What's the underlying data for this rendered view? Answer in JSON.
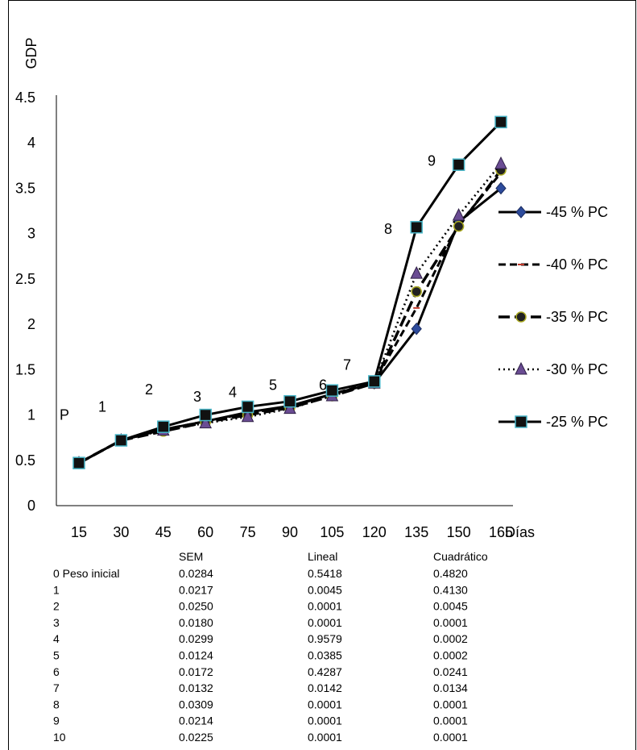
{
  "chart_data": {
    "type": "line",
    "ylabel": "GDP",
    "xlabel": "Días",
    "ylim": [
      0,
      4.5
    ],
    "y_ticks": [
      "0",
      "0.5",
      "1",
      "1.5",
      "2",
      "2.5",
      "3",
      "3.5",
      "4",
      "4.5"
    ],
    "x": [
      "15",
      "30",
      "45",
      "60",
      "75",
      "90",
      "105",
      "120",
      "135",
      "150",
      "165"
    ],
    "grid": false,
    "legend_position": "right",
    "series": [
      {
        "name": "-45 % PC",
        "values": [
          0.47,
          0.72,
          0.84,
          0.93,
          1.03,
          1.1,
          1.23,
          1.35,
          1.95,
          3.13,
          3.5
        ],
        "color": "#000000",
        "marker_color": "#2d4b9c",
        "dash": "solid"
      },
      {
        "name": "-40 % PC",
        "values": [
          0.47,
          0.72,
          0.84,
          0.93,
          1.02,
          1.09,
          1.23,
          1.36,
          2.18,
          3.1,
          3.67
        ],
        "color": "#000000",
        "marker_color": "#c0392b",
        "dash": "dash"
      },
      {
        "name": "-35 % PC",
        "values": [
          0.47,
          0.72,
          0.82,
          0.92,
          1.0,
          1.08,
          1.21,
          1.35,
          2.36,
          3.08,
          3.7
        ],
        "color": "#000000",
        "marker_color": "#a8a820",
        "dash": "longdash"
      },
      {
        "name": "-30 % PC",
        "values": [
          0.47,
          0.72,
          0.83,
          0.91,
          0.98,
          1.07,
          1.21,
          1.35,
          2.56,
          3.2,
          3.77
        ],
        "color": "#000000",
        "marker_color": "#6a4c93",
        "dash": "dot"
      },
      {
        "name": "-25 % PC",
        "values": [
          0.47,
          0.72,
          0.87,
          1.0,
          1.09,
          1.15,
          1.27,
          1.37,
          3.07,
          3.76,
          4.23
        ],
        "color": "#000000",
        "marker_color": "#48b6c8",
        "dash": "solid"
      }
    ],
    "annotations": [
      {
        "label": "P",
        "x": "15",
        "y": 1.0
      },
      {
        "label": "1",
        "x": "30",
        "y": 1.09
      },
      {
        "label": "2",
        "x": "45",
        "y": 1.28
      },
      {
        "label": "3",
        "x": "60",
        "y": 1.2
      },
      {
        "label": "4",
        "x": "75",
        "y": 1.25
      },
      {
        "label": "5",
        "x": "90",
        "y": 1.33
      },
      {
        "label": "6",
        "x": "105",
        "y": 1.33
      },
      {
        "label": "7",
        "x": "120",
        "y": 1.55
      },
      {
        "label": "8",
        "x": "135",
        "y": 3.05
      },
      {
        "label": "9",
        "x": "150",
        "y": 3.8
      }
    ]
  },
  "table": {
    "headers": [
      "",
      "SEM",
      "Lineal",
      "Cuadrático"
    ],
    "rows": [
      [
        "0 Peso inicial",
        "0.0284",
        "0.5418",
        "0.4820"
      ],
      [
        "1",
        "0.0217",
        "0.0045",
        "0.4130"
      ],
      [
        "2",
        "0.0250",
        "0.0001",
        "0.0045"
      ],
      [
        "3",
        "0.0180",
        "0.0001",
        "0.0001"
      ],
      [
        "4",
        "0.0299",
        "0.9579",
        "0.0002"
      ],
      [
        "5",
        "0.0124",
        "0.0385",
        "0.0002"
      ],
      [
        "6",
        "0.0172",
        "0.4287",
        "0.0241"
      ],
      [
        "7",
        "0.0132",
        "0.0142",
        "0.0134"
      ],
      [
        "8",
        "0.0309",
        "0.0001",
        "0.0001"
      ],
      [
        "9",
        "0.0214",
        "0.0001",
        "0.0001"
      ],
      [
        "10",
        "0.0225",
        "0.0001",
        "0.0001"
      ]
    ]
  }
}
